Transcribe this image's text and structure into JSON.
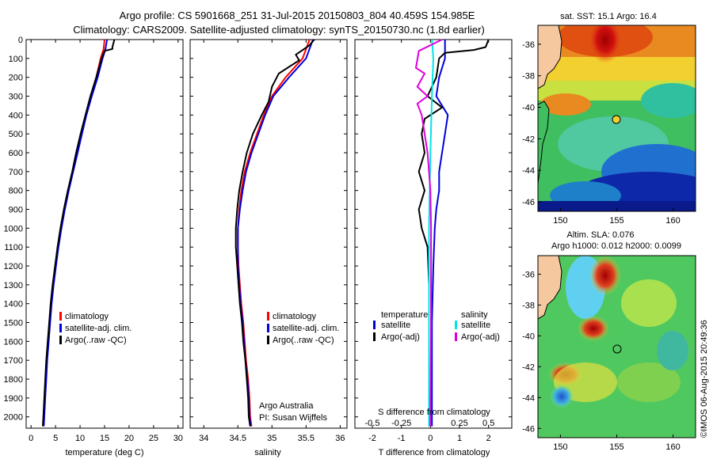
{
  "header": {
    "line1": "Argo profile: CS 5901668_251 31-Jul-2015 20150803_804 40.459S 154.985E",
    "line2": "Climatology: CARS2009. Satellite-adjusted climatology: synTS_20150730.nc (1.8d earlier)"
  },
  "colors": {
    "climatology": "#ff0000",
    "satellite": "#0000dd",
    "argo": "#000000",
    "sat_salinity": "#00e5e5",
    "argo_salinity": "#dd00dd"
  },
  "chart_data": [
    {
      "type": "line",
      "id": "temperature",
      "xlabel": "temperature (deg C)",
      "xlim": [
        -1,
        31
      ],
      "xticks": [
        0,
        5,
        10,
        15,
        20,
        25,
        30
      ],
      "ylim": [
        2060,
        0
      ],
      "yticks": [
        0,
        100,
        200,
        300,
        400,
        500,
        600,
        700,
        800,
        900,
        1000,
        1100,
        1200,
        1300,
        1400,
        1500,
        1600,
        1700,
        1800,
        1900,
        2000
      ],
      "legend": [
        "climatology",
        "satellite-adj. clim.",
        "Argo(..raw -QC)"
      ],
      "series": [
        {
          "name": "climatology",
          "color": "#ff0000",
          "points": [
            [
              15.0,
              0
            ],
            [
              14.8,
              50
            ],
            [
              14.2,
              100
            ],
            [
              13.3,
              200
            ],
            [
              12.2,
              300
            ],
            [
              11.2,
              400
            ],
            [
              10.3,
              500
            ],
            [
              9.4,
              600
            ],
            [
              8.5,
              700
            ],
            [
              7.6,
              800
            ],
            [
              6.8,
              900
            ],
            [
              6.1,
              1000
            ],
            [
              5.5,
              1100
            ],
            [
              5.0,
              1200
            ],
            [
              4.5,
              1300
            ],
            [
              4.1,
              1400
            ],
            [
              3.8,
              1500
            ],
            [
              3.5,
              1600
            ],
            [
              3.2,
              1700
            ],
            [
              3.0,
              1800
            ],
            [
              2.8,
              1900
            ],
            [
              2.6,
              2000
            ],
            [
              2.5,
              2050
            ]
          ]
        },
        {
          "name": "satellite-adj. clim.",
          "color": "#0000dd",
          "points": [
            [
              15.5,
              0
            ],
            [
              15.2,
              50
            ],
            [
              14.6,
              100
            ],
            [
              13.6,
              200
            ],
            [
              12.4,
              300
            ],
            [
              11.3,
              400
            ],
            [
              10.4,
              500
            ],
            [
              9.5,
              600
            ],
            [
              8.6,
              700
            ],
            [
              7.7,
              800
            ],
            [
              6.9,
              900
            ],
            [
              6.2,
              1000
            ],
            [
              5.6,
              1100
            ],
            [
              5.1,
              1200
            ],
            [
              4.6,
              1300
            ],
            [
              4.2,
              1400
            ],
            [
              3.9,
              1500
            ],
            [
              3.6,
              1600
            ],
            [
              3.3,
              1700
            ],
            [
              3.1,
              1800
            ],
            [
              2.9,
              1900
            ],
            [
              2.7,
              2000
            ],
            [
              2.6,
              2050
            ]
          ]
        },
        {
          "name": "Argo(..raw -QC)",
          "color": "#000000",
          "points": [
            [
              17.0,
              0
            ],
            [
              16.6,
              40
            ],
            [
              16.6,
              50
            ],
            [
              15.0,
              60
            ],
            [
              14.4,
              100
            ],
            [
              13.3,
              200
            ],
            [
              12.1,
              300
            ],
            [
              11.1,
              400
            ],
            [
              10.1,
              500
            ],
            [
              9.2,
              600
            ],
            [
              8.4,
              700
            ],
            [
              7.5,
              800
            ],
            [
              6.7,
              900
            ],
            [
              6.0,
              1000
            ],
            [
              5.4,
              1100
            ],
            [
              4.9,
              1200
            ],
            [
              4.4,
              1300
            ],
            [
              4.0,
              1400
            ],
            [
              3.7,
              1500
            ],
            [
              3.4,
              1600
            ],
            [
              3.1,
              1700
            ],
            [
              2.9,
              1800
            ],
            [
              2.7,
              1900
            ],
            [
              2.5,
              2000
            ],
            [
              2.4,
              2050
            ]
          ]
        }
      ]
    },
    {
      "type": "line",
      "id": "salinity",
      "xlabel": "salinity",
      "xlim": [
        33.8,
        36.1
      ],
      "xticks": [
        34,
        34.5,
        35,
        35.5,
        36
      ],
      "ylim": [
        2060,
        0
      ],
      "legend": [
        "climatology",
        "satellite-adj. clim.",
        "Argo(..raw -QC)"
      ],
      "annotation": [
        "Argo Australia",
        "PI: Susan Wijffels"
      ],
      "series": [
        {
          "name": "climatology",
          "color": "#ff0000",
          "points": [
            [
              35.55,
              0
            ],
            [
              35.45,
              100
            ],
            [
              35.2,
              200
            ],
            [
              35.0,
              300
            ],
            [
              34.88,
              400
            ],
            [
              34.78,
              500
            ],
            [
              34.68,
              600
            ],
            [
              34.6,
              700
            ],
            [
              34.55,
              800
            ],
            [
              34.52,
              900
            ],
            [
              34.5,
              1000
            ],
            [
              34.5,
              1100
            ],
            [
              34.51,
              1200
            ],
            [
              34.53,
              1300
            ],
            [
              34.55,
              1400
            ],
            [
              34.58,
              1500
            ],
            [
              34.6,
              1600
            ],
            [
              34.62,
              1700
            ],
            [
              34.65,
              1800
            ],
            [
              34.67,
              1900
            ],
            [
              34.68,
              2000
            ],
            [
              34.7,
              2050
            ]
          ]
        },
        {
          "name": "satellite-adj. clim.",
          "color": "#0000dd",
          "points": [
            [
              35.6,
              0
            ],
            [
              35.5,
              100
            ],
            [
              35.25,
              200
            ],
            [
              35.02,
              300
            ],
            [
              34.9,
              400
            ],
            [
              34.8,
              500
            ],
            [
              34.7,
              600
            ],
            [
              34.62,
              700
            ],
            [
              34.57,
              800
            ],
            [
              34.53,
              900
            ],
            [
              34.5,
              1000
            ],
            [
              34.5,
              1100
            ],
            [
              34.5,
              1200
            ],
            [
              34.52,
              1300
            ],
            [
              34.54,
              1400
            ],
            [
              34.57,
              1500
            ],
            [
              34.59,
              1600
            ],
            [
              34.61,
              1700
            ],
            [
              34.64,
              1800
            ],
            [
              34.66,
              1900
            ],
            [
              34.67,
              2000
            ],
            [
              34.69,
              2050
            ]
          ]
        },
        {
          "name": "Argo(..raw -QC)",
          "color": "#000000",
          "points": [
            [
              35.62,
              0
            ],
            [
              35.55,
              30
            ],
            [
              35.35,
              80
            ],
            [
              35.4,
              110
            ],
            [
              35.1,
              180
            ],
            [
              35.0,
              250
            ],
            [
              34.95,
              330
            ],
            [
              34.85,
              400
            ],
            [
              34.72,
              500
            ],
            [
              34.63,
              600
            ],
            [
              34.57,
              700
            ],
            [
              34.52,
              800
            ],
            [
              34.49,
              900
            ],
            [
              34.47,
              1000
            ],
            [
              34.47,
              1100
            ],
            [
              34.49,
              1200
            ],
            [
              34.51,
              1300
            ],
            [
              34.53,
              1400
            ],
            [
              34.56,
              1500
            ],
            [
              34.58,
              1600
            ],
            [
              34.61,
              1700
            ],
            [
              34.63,
              1800
            ],
            [
              34.65,
              1900
            ],
            [
              34.66,
              2000
            ],
            [
              34.68,
              2050
            ]
          ]
        }
      ]
    },
    {
      "type": "line",
      "id": "difference",
      "xlabel": "T difference from climatology",
      "xlabel_top": "S difference from climatology",
      "xlim": [
        -2.6,
        2.8
      ],
      "xticks": [
        -2,
        -1,
        0,
        1,
        2
      ],
      "xticks_top_labels": [
        "-0.5",
        "-0.25",
        "0",
        "0.25",
        "0.5"
      ],
      "xticks_top_values": [
        -2,
        -1,
        0,
        1,
        2
      ],
      "ylim": [
        2060,
        0
      ],
      "legend_left_title": "temperature",
      "legend_right_title": "salinity",
      "legend_left": [
        "satellite",
        "Argo(-adj)"
      ],
      "legend_right": [
        "satellite",
        "Argo(-adj)"
      ],
      "series": [
        {
          "name": "T satellite",
          "color": "#0000dd",
          "points": [
            [
              0.5,
              0
            ],
            [
              0.5,
              100
            ],
            [
              0.3,
              200
            ],
            [
              0.2,
              300
            ],
            [
              0.6,
              400
            ],
            [
              0.5,
              500
            ],
            [
              0.4,
              600
            ],
            [
              0.3,
              700
            ],
            [
              0.3,
              800
            ],
            [
              0.2,
              900
            ],
            [
              0.15,
              1000
            ],
            [
              0.1,
              1200
            ],
            [
              0.05,
              1500
            ],
            [
              0.05,
              2000
            ],
            [
              0.05,
              2050
            ]
          ]
        },
        {
          "name": "T Argo(-adj)",
          "color": "#000000",
          "points": [
            [
              2.0,
              0
            ],
            [
              1.9,
              40
            ],
            [
              1.5,
              55
            ],
            [
              0.5,
              70
            ],
            [
              0.3,
              100
            ],
            [
              0.2,
              200
            ],
            [
              -0.1,
              300
            ],
            [
              0.4,
              360
            ],
            [
              -0.2,
              420
            ],
            [
              -0.3,
              500
            ],
            [
              -0.2,
              600
            ],
            [
              -0.4,
              700
            ],
            [
              -0.2,
              800
            ],
            [
              -0.4,
              900
            ],
            [
              -0.3,
              1000
            ],
            [
              -0.1,
              1100
            ],
            [
              -0.05,
              1300
            ],
            [
              -0.05,
              1500
            ],
            [
              -0.05,
              2000
            ],
            [
              -0.05,
              2050
            ]
          ]
        },
        {
          "name": "S satellite",
          "color": "#00e5e5",
          "points": [
            [
              0.05,
              0
            ],
            [
              0.1,
              100
            ],
            [
              0.05,
              300
            ],
            [
              0.0,
              600
            ],
            [
              -0.05,
              1000
            ],
            [
              -0.05,
              1500
            ],
            [
              -0.05,
              2050
            ]
          ]
        },
        {
          "name": "S Argo(-adj)",
          "color": "#dd00dd",
          "points": [
            [
              0.4,
              0
            ],
            [
              -0.4,
              60
            ],
            [
              -0.5,
              150
            ],
            [
              -0.2,
              180
            ],
            [
              -0.45,
              250
            ],
            [
              -0.1,
              300
            ],
            [
              -0.45,
              340
            ],
            [
              -0.3,
              400
            ],
            [
              -0.1,
              600
            ],
            [
              0.0,
              800
            ],
            [
              0.02,
              1000
            ],
            [
              0.02,
              1500
            ],
            [
              0.0,
              2050
            ]
          ]
        }
      ]
    }
  ],
  "maps": {
    "sst": {
      "title": "sat. SST: 15.1  Argo: 16.4",
      "xticks": [
        150,
        155,
        160
      ],
      "yticks": [
        -36,
        -38,
        -40,
        -42,
        -44,
        -46
      ]
    },
    "sla": {
      "title1": "Altim. SLA: 0.076",
      "title2": "Argo h1000: 0.012 h2000: 0.0099",
      "xticks": [
        150,
        155,
        160
      ],
      "yticks": [
        -36,
        -38,
        -40,
        -42,
        -44,
        -46
      ]
    },
    "argo_position": {
      "lon": 154.985,
      "lat": -40.459
    }
  },
  "footer": "©IMOS 06-Aug-2015 20:49:36"
}
